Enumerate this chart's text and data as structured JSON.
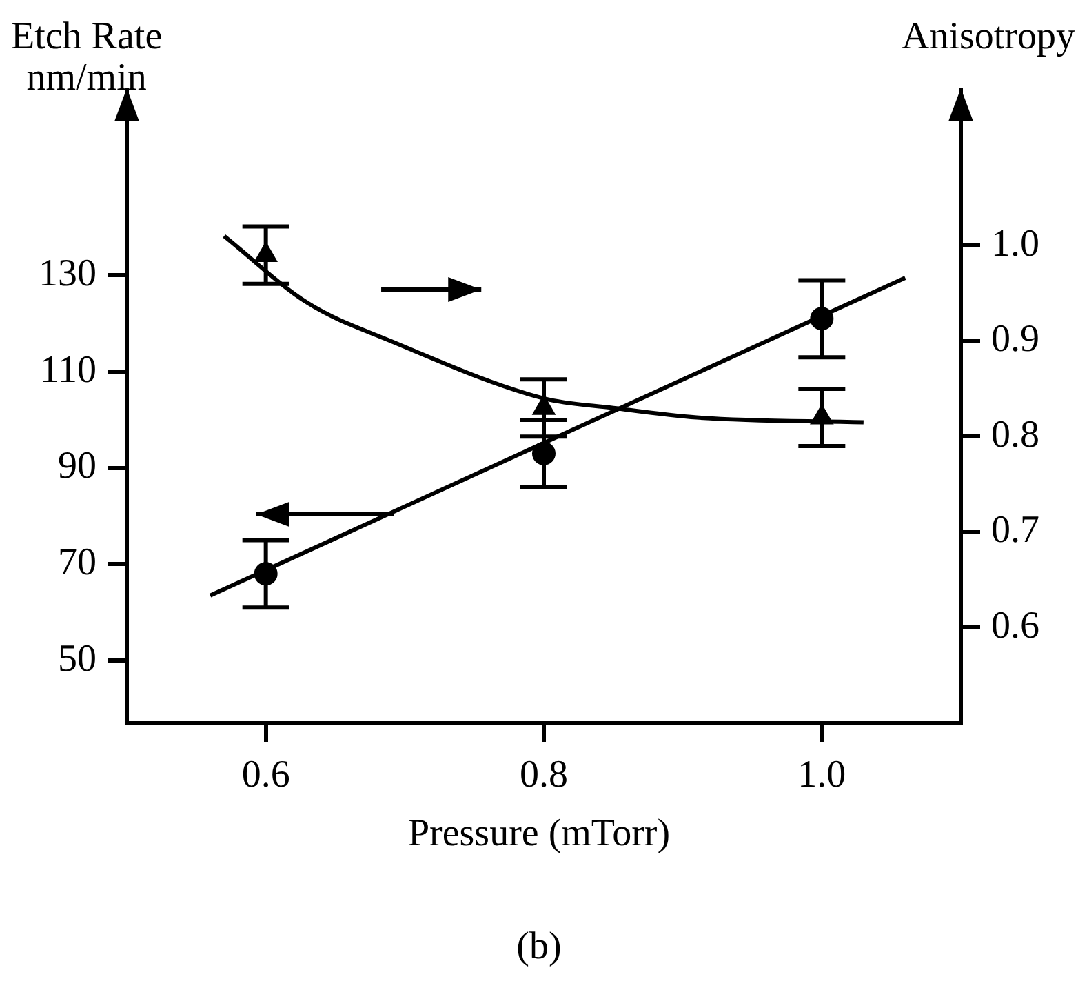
{
  "chart_data": {
    "type": "scatter",
    "xlabel": "Pressure (mTorr)",
    "ylabel": "Etch Rate\nnm/min",
    "y2label": "Anisotropy",
    "annotations": [
      "(b)"
    ],
    "xlim": [
      0.5,
      1.1
    ],
    "xticks": [
      0.6,
      0.8,
      {
        "value": 1.0,
        "label": "1.0"
      }
    ],
    "ylim": [
      37,
      160
    ],
    "yticks": [
      50,
      70,
      90,
      110,
      130
    ],
    "y2lim": [
      0.5,
      1.12
    ],
    "y2ticks": [
      0.6,
      0.7,
      0.8,
      0.9,
      {
        "value": 1.0,
        "label": "1.0"
      }
    ],
    "grid": false,
    "legend": false,
    "series": [
      {
        "type": "scatter",
        "color": "#000000",
        "marker": "circle",
        "x": [
          0.6,
          0.8,
          1.0
        ],
        "values": [
          68,
          93,
          121
        ],
        "errors": [
          7,
          7,
          8
        ]
      },
      {
        "type": "scatter",
        "axis": "y2",
        "color": "#000000",
        "marker": "triangle",
        "x": [
          0.6,
          0.8,
          1.0
        ],
        "values": [
          0.99,
          0.83,
          0.82
        ],
        "errors": [
          0.03,
          0.03,
          0.03
        ]
      },
      {
        "type": "line",
        "color": "#000000",
        "marker": "none",
        "x": [
          0.56,
          1.06
        ],
        "values": [
          63.5,
          129.5
        ]
      },
      {
        "type": "line",
        "axis": "y2",
        "color": "#000000",
        "marker": "none",
        "x": [
          0.57,
          0.63,
          0.69,
          0.8,
          0.85,
          0.91,
          1.03
        ],
        "values": [
          1.01,
          0.94,
          0.9,
          0.84,
          0.83,
          0.82,
          0.815
        ]
      }
    ]
  }
}
